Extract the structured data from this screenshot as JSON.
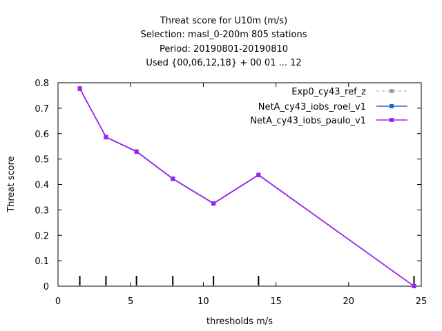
{
  "chart_data": {
    "type": "line",
    "title_lines": [
      "Threat score  for U10m (m/s)",
      "Selection: masl_0-200m    805 stations",
      "Period: 20190801-20190810",
      "Used {00,06,12,18} + 00 01 ... 12"
    ],
    "xlabel": "thresholds m/s",
    "ylabel": "Threat score",
    "xlim": [
      0,
      25
    ],
    "ylim": [
      0,
      0.8
    ],
    "xticks": [
      0,
      5,
      10,
      15,
      20,
      25
    ],
    "yticks": [
      0,
      0.1,
      0.2,
      0.3,
      0.4,
      0.5,
      0.6,
      0.7,
      0.8
    ],
    "legend_position": "top-right",
    "grid": false,
    "threshold_markers": [
      1.5,
      3.3,
      5.4,
      7.9,
      10.7,
      13.8,
      24.5
    ],
    "series": [
      {
        "name": "Exp0_cy43_ref_z",
        "color": "#a0a0a0",
        "dashed": true,
        "x": [
          1.5,
          3.3,
          5.4,
          7.9,
          10.7,
          13.8,
          24.5
        ],
        "y": [
          0.775,
          0.585,
          0.528,
          0.422,
          0.325,
          0.437,
          0.0
        ]
      },
      {
        "name": "NetA_cy43_iobs_roel_v1",
        "color": "#3060d0",
        "dashed": false,
        "x": [
          1.5,
          3.3,
          5.4,
          7.9,
          10.7,
          13.8,
          24.5
        ],
        "y": [
          0.778,
          0.587,
          0.53,
          0.423,
          0.326,
          0.438,
          0.0
        ]
      },
      {
        "name": "NetA_cy43_iobs_paulo_v1",
        "color": "#a020f0",
        "dashed": false,
        "x": [
          1.5,
          3.3,
          5.4,
          7.9,
          10.7,
          13.8,
          24.5
        ],
        "y": [
          0.777,
          0.586,
          0.529,
          0.422,
          0.325,
          0.437,
          0.0
        ]
      }
    ]
  }
}
